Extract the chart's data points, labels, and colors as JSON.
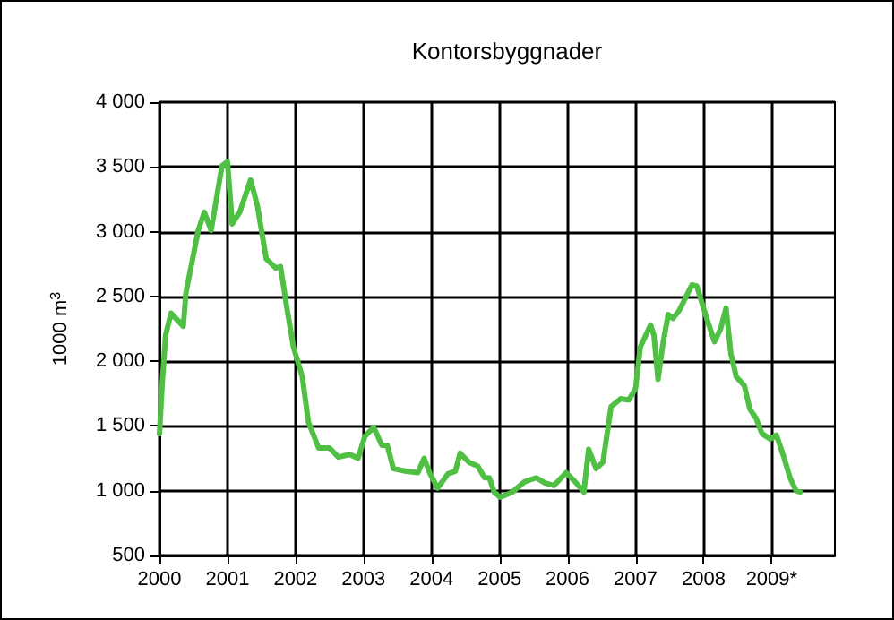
{
  "chart_data": {
    "type": "line",
    "title": "Kontorsbyggnader",
    "ylabel": "1000 m$^{3}$",
    "series": [
      {
        "color": "#4fc043",
        "x": [
          2000.0,
          2000.04,
          2000.09,
          2000.17,
          2000.35,
          2000.39,
          2000.57,
          2000.66,
          2000.76,
          2000.92,
          2001.0,
          2001.07,
          2001.18,
          2001.34,
          2001.44,
          2001.57,
          2001.71,
          2001.78,
          2001.88,
          2001.97,
          2002.1,
          2002.19,
          2002.34,
          2002.5,
          2002.63,
          2002.8,
          2002.92,
          2003.02,
          2003.15,
          2003.27,
          2003.35,
          2003.44,
          2003.63,
          2003.8,
          2003.89,
          2003.98,
          2004.09,
          2004.24,
          2004.35,
          2004.42,
          2004.55,
          2004.68,
          2004.78,
          2004.85,
          2004.92,
          2005.01,
          2005.19,
          2005.37,
          2005.54,
          2005.67,
          2005.8,
          2005.98,
          2006.11,
          2006.24,
          2006.31,
          2006.42,
          2006.52,
          2006.64,
          2006.78,
          2006.9,
          2007.0,
          2007.07,
          2007.22,
          2007.27,
          2007.33,
          2007.4,
          2007.48,
          2007.55,
          2007.64,
          2007.83,
          2007.9,
          2008.04,
          2008.16,
          2008.25,
          2008.33,
          2008.4,
          2008.48,
          2008.6,
          2008.68,
          2008.77,
          2008.86,
          2008.98,
          2009.07,
          2009.18,
          2009.27,
          2009.36,
          2009.42
        ],
        "values": [
          1440,
          1820,
          2200,
          2370,
          2270,
          2530,
          3010,
          3150,
          3010,
          3510,
          3540,
          3060,
          3150,
          3400,
          3200,
          2790,
          2720,
          2730,
          2390,
          2110,
          1880,
          1530,
          1330,
          1330,
          1260,
          1280,
          1250,
          1420,
          1490,
          1350,
          1350,
          1170,
          1150,
          1140,
          1250,
          1130,
          1020,
          1130,
          1150,
          1290,
          1220,
          1190,
          1100,
          1100,
          990,
          950,
          990,
          1070,
          1100,
          1060,
          1040,
          1140,
          1070,
          990,
          1320,
          1170,
          1220,
          1650,
          1710,
          1700,
          1790,
          2110,
          2280,
          2200,
          1860,
          2130,
          2360,
          2330,
          2390,
          2590,
          2580,
          2340,
          2150,
          2250,
          2410,
          2060,
          1880,
          1810,
          1630,
          1560,
          1440,
          1400,
          1430,
          1260,
          1100,
          1000,
          990
        ]
      }
    ],
    "xlim": [
      2000,
      2009.93
    ],
    "xticks": [
      2000,
      2001,
      2002,
      2003,
      2004,
      2005,
      2006,
      2007,
      2008,
      {
        "value": 2009,
        "label": "2009*"
      }
    ],
    "ylim": [
      500,
      4000
    ],
    "yticks": [
      {
        "value": 500,
        "label": "500"
      },
      {
        "value": 1000,
        "label": "1 000"
      },
      {
        "value": 1500,
        "label": "1 500"
      },
      {
        "value": 2000,
        "label": "2 000"
      },
      {
        "value": 2500,
        "label": "2 500"
      },
      {
        "value": 3000,
        "label": "3 000"
      },
      {
        "value": 3500,
        "label": "3 500"
      },
      {
        "value": 4000,
        "label": "4 000"
      }
    ],
    "grid": true,
    "marker": "none",
    "line_style": "solid"
  }
}
